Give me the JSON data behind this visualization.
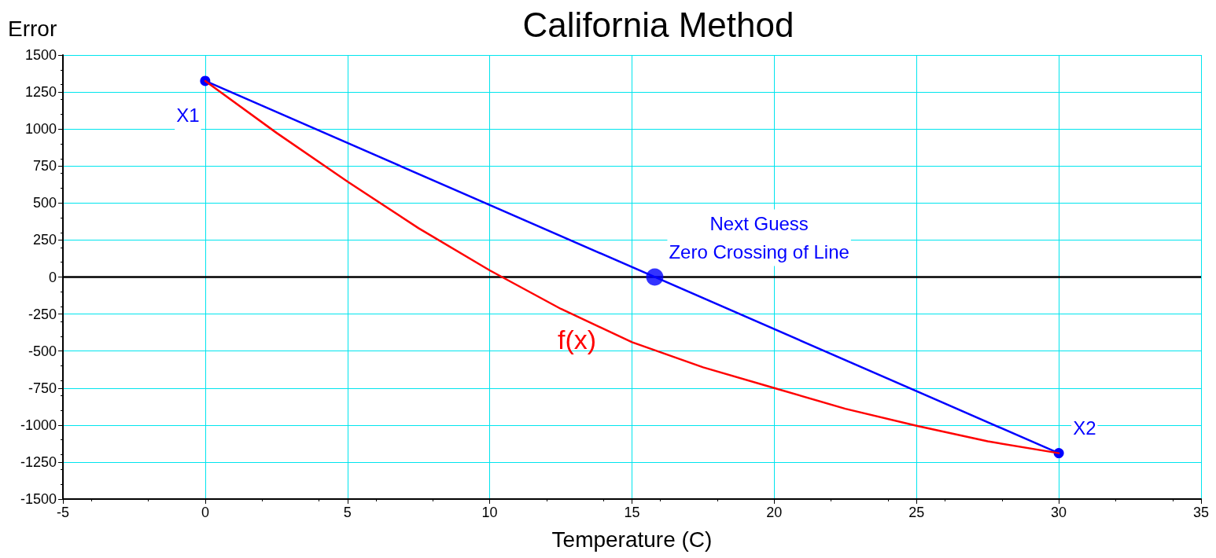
{
  "chart_data": {
    "type": "line",
    "title": "California Method",
    "xlabel": "Temperature (C)",
    "ylabel": "Error",
    "xlim": [
      -5,
      35
    ],
    "xticks": [
      -5,
      0,
      5,
      10,
      15,
      20,
      25,
      30,
      35
    ],
    "ylim": [
      -1500,
      1500
    ],
    "yticks": [
      -1500,
      -1250,
      -1000,
      -750,
      -500,
      -250,
      0,
      250,
      500,
      750,
      1000,
      1250,
      1500
    ],
    "grid": true,
    "legend": false,
    "series": [
      {
        "name": "f(x)",
        "color": "#ff0000",
        "marker": "none",
        "x": [
          0,
          2.5,
          5,
          7.5,
          10,
          12.5,
          15,
          17.5,
          20,
          22.5,
          25,
          27.5,
          30
        ],
        "values": [
          1325,
          975,
          645,
          330,
          45,
          -215,
          -440,
          -610,
          -750,
          -890,
          -1005,
          -1110,
          -1190
        ]
      },
      {
        "color": "#0000ff",
        "marker": "circle",
        "x": [
          0,
          30
        ],
        "values": [
          1325,
          -1190
        ]
      },
      {
        "type": "scatter",
        "color": "#0000ff",
        "marker": "circle",
        "x": [
          15.8
        ],
        "values": [
          0
        ]
      }
    ],
    "ref_lines": [
      {
        "axis": "y",
        "value": 0,
        "color": "#000000"
      }
    ],
    "annotations": [
      {
        "text": "X1",
        "x": 0,
        "y": 1325
      },
      {
        "text": "X2",
        "x": 30,
        "y": -1190
      },
      {
        "text": "Next Guess\nZero Crossing of Line",
        "x": 15.8,
        "y": 0
      }
    ]
  }
}
